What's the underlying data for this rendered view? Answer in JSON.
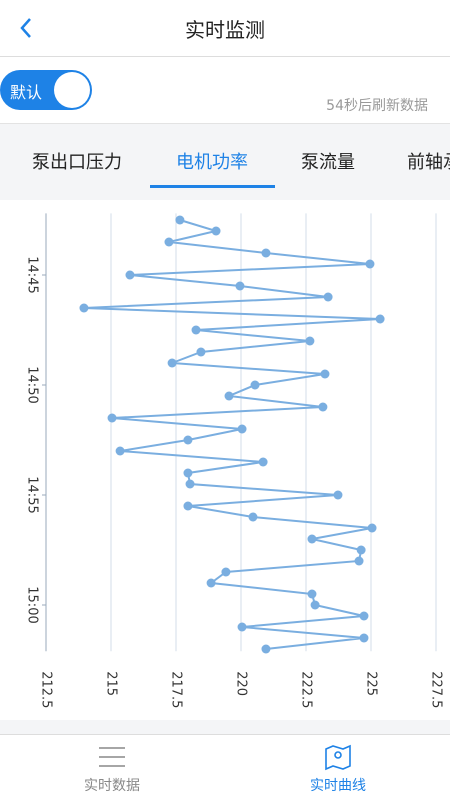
{
  "header": {
    "title": "实时监测"
  },
  "toggle": {
    "label": "默认"
  },
  "refresh_note": "54秒后刷新数据",
  "tabs": [
    "泵出口压力",
    "电机功率",
    "泵流量",
    "前轴承"
  ],
  "chart_data": {
    "type": "line",
    "orientation": "horizontal",
    "color": "#7aaee0",
    "x": [
      882.5,
      883,
      883.5,
      884,
      884.5,
      885,
      885.5,
      886,
      886.5,
      887,
      887.5,
      888,
      888.5,
      889,
      889.5,
      890,
      890.5,
      891,
      891.5,
      892,
      892.5,
      893,
      893.5,
      894,
      894.5,
      895,
      895.5,
      896,
      896.5,
      897,
      897.5,
      898,
      898.5,
      899,
      899.5,
      900,
      900.5,
      901,
      901.5,
      902
    ],
    "values": [
      217.65,
      219.04,
      217.23,
      220.96,
      224.96,
      215.73,
      219.96,
      223.35,
      213.96,
      225.35,
      218.27,
      222.65,
      218.46,
      217.35,
      223.23,
      220.54,
      219.54,
      223.15,
      215.04,
      220.04,
      217.96,
      215.35,
      220.85,
      217.96,
      218.04,
      223.73,
      217.96,
      220.46,
      225.04,
      222.73,
      224.62,
      224.54,
      219.42,
      218.85,
      222.73,
      222.85,
      224.73,
      220.04,
      224.73,
      220.96
    ],
    "xlim": [
      882.2,
      902.1
    ],
    "xticks": [
      {
        "value": 885,
        "label": "14:45"
      },
      {
        "value": 890,
        "label": "14:50"
      },
      {
        "value": 895,
        "label": "14:55"
      },
      {
        "value": 900,
        "label": "15:00"
      }
    ],
    "ylim": [
      212.5,
      227.5
    ],
    "yticks": [
      212.5,
      215,
      217.5,
      220,
      222.5,
      225,
      227.5
    ],
    "grid": true
  },
  "bottom_nav": [
    "实时数据",
    "实时曲线"
  ]
}
